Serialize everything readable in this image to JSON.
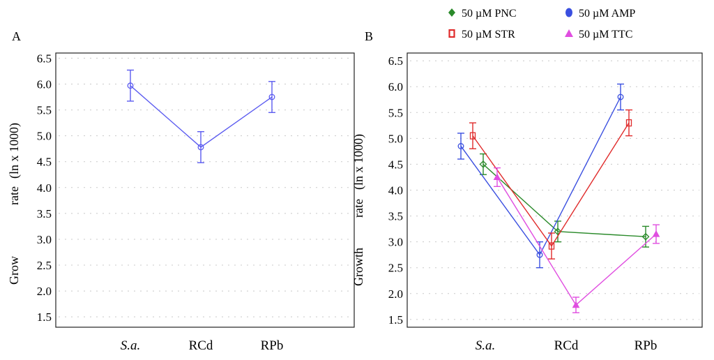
{
  "chart_data": [
    {
      "panel_label": "A",
      "type": "line",
      "categories": [
        "S.a.",
        "RCd",
        "RPb"
      ],
      "ylabel": "Grow   rate   (ln x 1000)",
      "ylabel_parts": [
        "Grow",
        "rate",
        "(ln x 1000)"
      ],
      "ylim": [
        1.3,
        6.6
      ],
      "yticks": [
        "1.5",
        "2.0",
        "2.5",
        "3.0",
        "3.5",
        "4.0",
        "4.5",
        "5.0",
        "5.5",
        "6.0",
        "6.5"
      ],
      "grid": true,
      "series": [
        {
          "name": "Growth rate",
          "color": "#5b5bf0",
          "marker": "circle",
          "values": [
            5.97,
            4.78,
            5.75
          ],
          "err": [
            0.3,
            0.3,
            0.3
          ]
        }
      ]
    },
    {
      "panel_label": "B",
      "type": "line",
      "categories": [
        "S.a.",
        "RCd",
        "RPb"
      ],
      "ylabel": "Growth   rate   (ln x 1000)",
      "ylabel_parts": [
        "Growth",
        "rate",
        "(ln x 1000)"
      ],
      "ylim": [
        1.35,
        6.65
      ],
      "yticks": [
        "1.5",
        "2.0",
        "2.5",
        "3.0",
        "3.5",
        "4.0",
        "4.5",
        "5.0",
        "5.5",
        "6.0",
        "6.5"
      ],
      "grid": true,
      "legend_position": "top",
      "series": [
        {
          "name": "50 µM PNC",
          "color": "#2a8a2a",
          "marker": "diamond",
          "values": [
            4.5,
            3.2,
            3.1
          ],
          "err": [
            0.2,
            0.2,
            0.2
          ]
        },
        {
          "name": "50 µM AMP",
          "color": "#3a4fe0",
          "marker": "circle",
          "values": [
            4.85,
            2.75,
            5.8
          ],
          "err": [
            0.25,
            0.25,
            0.25
          ]
        },
        {
          "name": "50 µM STR",
          "color": "#e02b2b",
          "marker": "square",
          "values": [
            5.05,
            2.92,
            5.3
          ],
          "err": [
            0.25,
            0.25,
            0.25
          ]
        },
        {
          "name": "50 µM TTC",
          "color": "#e04ee0",
          "marker": "triangle",
          "values": [
            4.25,
            1.78,
            3.15
          ],
          "err": [
            0.18,
            0.15,
            0.18
          ]
        }
      ]
    }
  ]
}
